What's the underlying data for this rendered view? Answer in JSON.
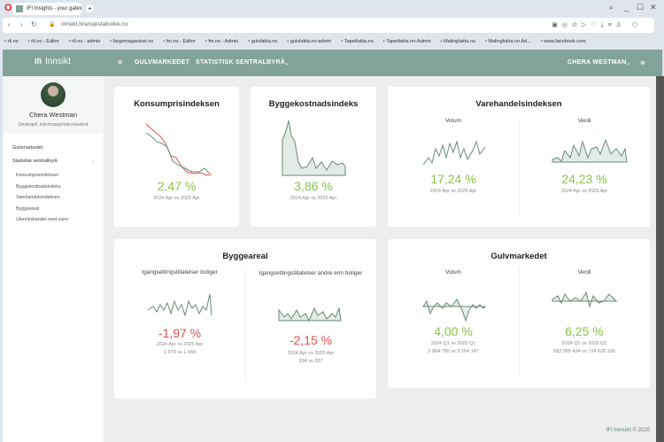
{
  "browser": {
    "tab_title": "IFI Insights - your gateway",
    "url": "innsikt.bransjestatistikk.no",
    "bookmarks": [
      "rfi.no",
      "rfi.no - Editor",
      "rfi.no - admin",
      "fargemagasinet.no",
      "fm.no - Editor",
      "fm.no - Admin",
      "gulvfakta.no",
      "gulvfakta.no-admin",
      "Tapetfakta.no",
      "Tapetfakta.no-Admin",
      "Malingfakta.no",
      "Malingfakta.no Ad...",
      "www.facebook.com"
    ]
  },
  "header": {
    "logo": "Innsikt",
    "logo_mark": "ifi",
    "nav": [
      "GULVMARKEDET",
      "STATISTISK SENTRALBYRÅ"
    ],
    "user": "CHERA WESTMAN"
  },
  "sidebar": {
    "name": "Chera Westman",
    "role": "Desksjef, informasjonskonsulent",
    "items": [
      "Gulvmarkedet",
      "Statistisk sentralbyrå"
    ],
    "subitems": [
      "Konsumprisindeksen",
      "Byggekostnadsindeks",
      "Varehandelsindeksen",
      "Byggeareal",
      "Utenrikshandel med varer"
    ]
  },
  "cards": {
    "kpi": {
      "title": "Konsumprisindeksen",
      "value": "2,47 %",
      "period": "2024 Apr vs 2025 Apr"
    },
    "bki": {
      "title": "Byggekostnadsindeks",
      "value": "3,86 %",
      "period": "2024 Apr vs 2025 Apr"
    },
    "vhi": {
      "title": "Varehandelsindeksen",
      "volum": {
        "label": "Volum",
        "value": "17,24 %",
        "period": "2024 Apr vs 2025 Apr"
      },
      "verdi": {
        "label": "Verdi",
        "value": "24,23 %",
        "period": "2024 Apr vs 2025 Apr"
      }
    },
    "byggeareal": {
      "title": "Byggeareal",
      "boliger": {
        "label": "Igangsettingstillatelser boliger",
        "value": "-1,97 %",
        "period": "2024 Apr vs 2025 Apr",
        "detail": "1 673 vs 1 640"
      },
      "andre": {
        "label": "Igangsettingstillatelser andre enn boliger",
        "value": "-2,15 %",
        "period": "2024 Apr vs 2025 Apr",
        "detail": "294 vs 287"
      }
    },
    "gulv": {
      "title": "Gulvmarkedet",
      "volum": {
        "label": "Volum",
        "value": "4,00 %",
        "period": "2024 Q1 vs 2025 Q1",
        "detail": "2 984 780 vs 3 104 147"
      },
      "verdi": {
        "label": "Verdi",
        "value": "6,25 %",
        "period": "2024 Q1 vs 2025 Q1",
        "detail": "682 005 424 vs 724 626 166"
      }
    }
  },
  "footer": {
    "brand": "IFI Innsikt",
    "copy": "© 2025"
  },
  "colors": {
    "accent": "#82a39a",
    "positive": "#8bc34a",
    "negative": "#e05050"
  }
}
